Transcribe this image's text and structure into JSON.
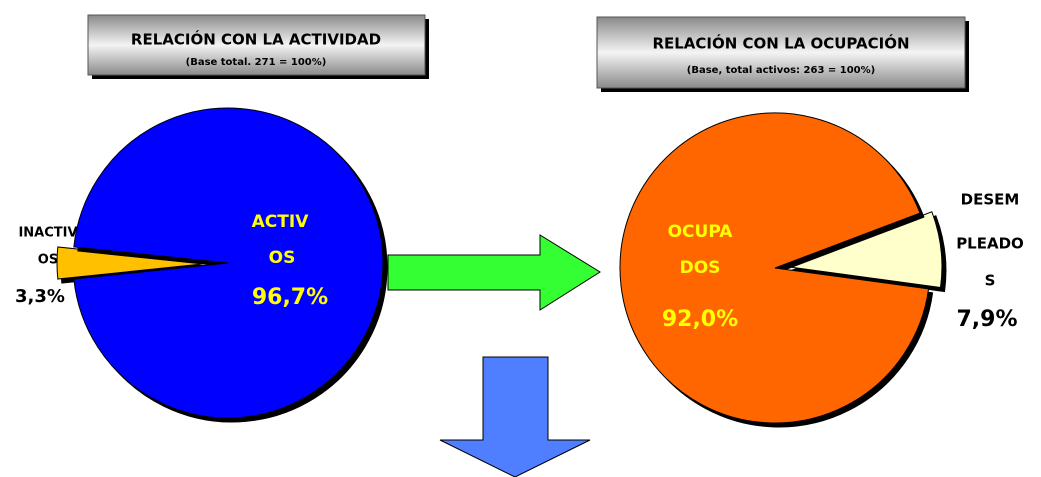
{
  "chart_data": [
    {
      "type": "pie",
      "title": "RELACIÓN CON LA ACTIVIDAD",
      "subtitle": "(Base total. 271 = 100%)",
      "categories": [
        [
          "INACTIV",
          "OS"
        ],
        [
          "ACTIV",
          "OS"
        ]
      ],
      "values": [
        3.3,
        96.7
      ],
      "value_labels": [
        "3,3%",
        "96,7%"
      ],
      "colors": [
        "#ffc000",
        "#0000ff"
      ]
    },
    {
      "type": "pie",
      "title": "RELACIÓN CON LA OCUPACIÓN",
      "subtitle": "(Base, total activos: 263 = 100%)",
      "categories": [
        [
          "OCUPA",
          "DOS"
        ],
        [
          "DESEM",
          "PLEADO",
          "S"
        ]
      ],
      "values": [
        92.0,
        7.9
      ],
      "value_labels": [
        "92,0%",
        "7,9%"
      ],
      "colors": [
        "#ff6600",
        "#ffffcc"
      ]
    }
  ]
}
